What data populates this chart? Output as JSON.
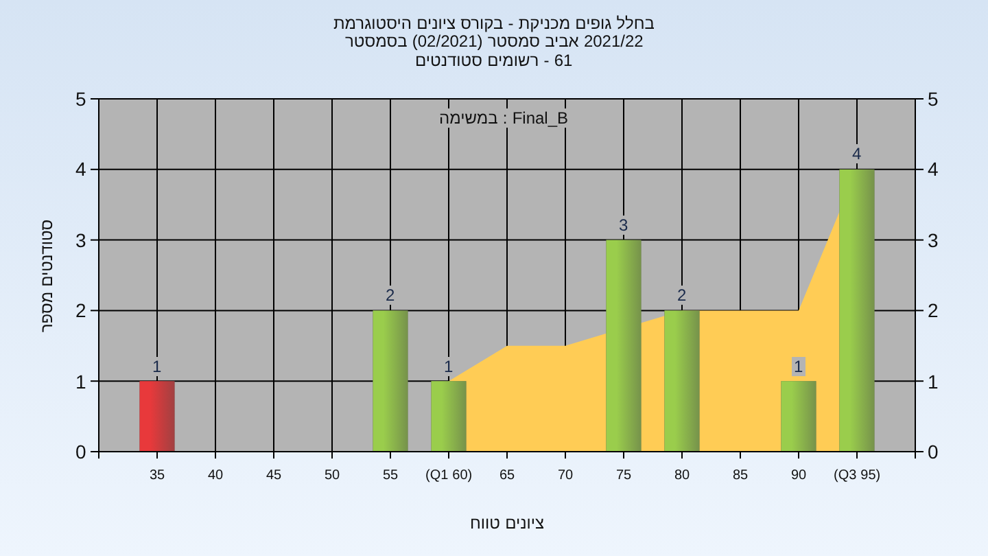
{
  "chart_data": {
    "type": "bar",
    "title": "היסטוגרמת ציונים בקורס - מכניקת גופים בחלל",
    "subtitle": "בסמסטר (02/2021) סמסטר אביב 2021/22",
    "annotations": [
      "סטודנטים רשומים - 61",
      "במשימה : Final_B"
    ],
    "xlabel": "טווח ציונים",
    "ylabel": "מספר סטודנטים",
    "x": [
      35,
      55,
      60,
      75,
      80,
      90,
      95
    ],
    "series": [
      {
        "type": "area",
        "color": "#ffcc55",
        "x": [
          60,
          65,
          70,
          80,
          85,
          90,
          95
        ],
        "values": [
          1,
          1.5,
          1.5,
          2,
          2,
          2,
          4
        ]
      },
      {
        "colors": [
          "#e8393b",
          "#9acd4c",
          "#9acd4c",
          "#9acd4c",
          "#9acd4c",
          "#9acd4c",
          "#9acd4c"
        ],
        "values": [
          1,
          2,
          1,
          3,
          2,
          1,
          4
        ],
        "value_labels": [
          "1",
          "2",
          "1",
          "3",
          "2",
          "1",
          "4"
        ]
      }
    ],
    "xlim": [
      30,
      100
    ],
    "xticks": [
      {
        "value": 30,
        "label": null
      },
      35,
      40,
      45,
      50,
      55,
      {
        "value": 60,
        "label": "(Q1 60)"
      },
      65,
      70,
      75,
      80,
      85,
      90,
      {
        "value": 95,
        "label": "(Q3 95)"
      },
      {
        "value": 100,
        "label": null
      }
    ],
    "ylim": [
      0,
      5
    ],
    "yticks": [
      0,
      1,
      2,
      3,
      4,
      5
    ],
    "y2lim": [
      0,
      5
    ],
    "y2ticks": [
      0,
      1,
      2,
      3,
      4,
      5
    ],
    "grid": true
  }
}
